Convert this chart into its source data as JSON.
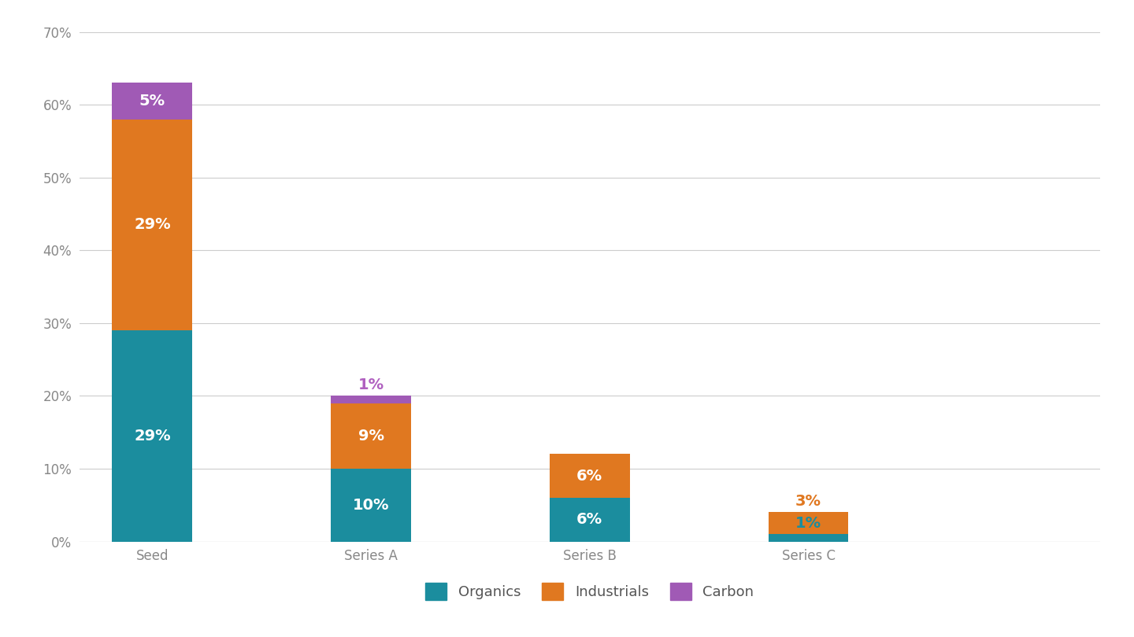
{
  "categories": [
    "Seed",
    "Series A",
    "Series B",
    "Series C"
  ],
  "organics": [
    29,
    10,
    6,
    1
  ],
  "industrials": [
    29,
    9,
    6,
    3
  ],
  "carbon": [
    5,
    1,
    0,
    0
  ],
  "colors": {
    "organics": "#1b8d9e",
    "industrials": "#e07820",
    "carbon": "#a05ab5"
  },
  "label_color_inside": "#ffffff",
  "label_color_carbon_outside": "#b060c0",
  "label_color_carbon_inside": "#ffffff",
  "label_color_teal_outside": "#1b8d9e",
  "label_color_orange_outside": "#e07820",
  "ylim": [
    0,
    70
  ],
  "yticks": [
    0,
    10,
    20,
    30,
    40,
    50,
    60,
    70
  ],
  "ytick_labels": [
    "0%",
    "10%",
    "20%",
    "30%",
    "40%",
    "50%",
    "60%",
    "70%"
  ],
  "legend_labels": [
    "Organics",
    "Industrials",
    "Carbon"
  ],
  "background_color": "#ffffff",
  "grid_color": "#cccccc",
  "bar_width": 0.55,
  "font_size_labels": 14,
  "font_size_ticks": 12,
  "font_size_legend": 13,
  "x_positions": [
    0.5,
    2.0,
    3.5,
    5.0
  ],
  "xlim": [
    0,
    7.0
  ]
}
